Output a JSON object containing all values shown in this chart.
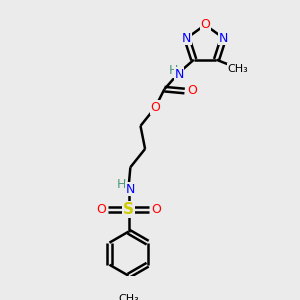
{
  "bg_color": "#ebebeb",
  "atom_colors": {
    "N": "#0000ff",
    "O": "#ff0000",
    "S": "#cccc00",
    "C": "#000000",
    "H": "#4a9a7a"
  },
  "bond_color": "#000000",
  "bond_width": 1.8,
  "figsize": [
    3.0,
    3.0
  ],
  "dpi": 100,
  "scale": 100
}
